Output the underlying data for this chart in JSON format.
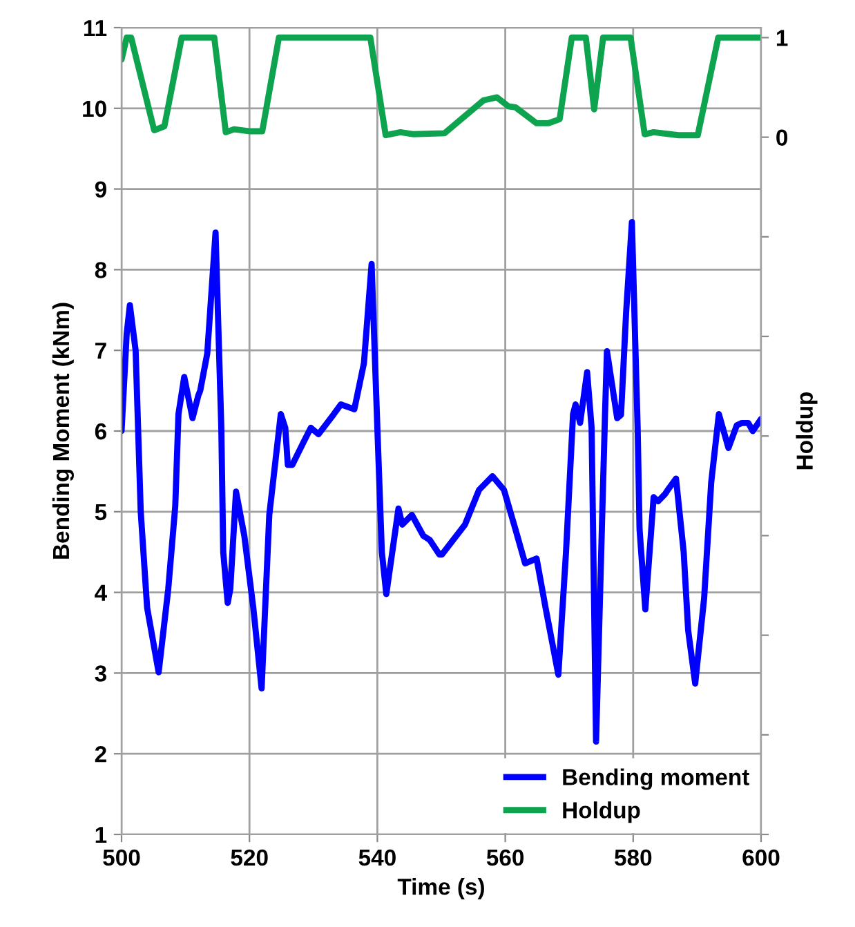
{
  "chart_data": {
    "type": "line",
    "xlabel": "Time (s)",
    "ylabel": "Bending Moment (kNm)",
    "y2label": "Holdup",
    "xlim": [
      500,
      600
    ],
    "xticks": [
      500,
      520,
      540,
      560,
      580,
      600
    ],
    "ylim": [
      1,
      11
    ],
    "yticks": [
      1,
      2,
      3,
      4,
      5,
      6,
      7,
      8,
      9,
      10,
      11
    ],
    "y2lim": [
      -7,
      1.1
    ],
    "y2ticks": [
      {
        "value": -7,
        "label": null
      },
      {
        "value": -6,
        "label": null
      },
      {
        "value": -5,
        "label": null
      },
      {
        "value": -4,
        "label": null
      },
      {
        "value": -3,
        "label": null
      },
      {
        "value": -2,
        "label": null
      },
      {
        "value": -1,
        "label": null
      },
      0,
      1
    ],
    "grid": true,
    "legend": "bottom right",
    "marker": "none",
    "line_style": "solid",
    "series": [
      {
        "name": "Bending moment",
        "color": "#0000ff",
        "axis": "y",
        "x": [
          500,
          500.8,
          501.3,
          502.2,
          503.0,
          504.0,
          505.8,
          507.3,
          508.4,
          508.9,
          509.8,
          511.1,
          512.0,
          512.3,
          513.4,
          514.7,
          515.6,
          515.9,
          516.6,
          517.0,
          517.9,
          519.2,
          520.6,
          521.9,
          523.1,
          524.9,
          525.6,
          526.0,
          526.7,
          528.5,
          529.6,
          530.8,
          533.2,
          534.3,
          536.4,
          537.9,
          539.1,
          540.0,
          540.7,
          541.4,
          543.3,
          543.9,
          545.4,
          547.2,
          548.2,
          549.7,
          550.1,
          553.7,
          555.9,
          558.0,
          559.8,
          561.6,
          563.1,
          564.9,
          566.3,
          568.3,
          569.5,
          570.6,
          571.0,
          571.7,
          572.8,
          573.5,
          574.2,
          575.2,
          575.6,
          575.9,
          577.5,
          578.1,
          578.9,
          579.8,
          580.7,
          581.0,
          581.9,
          583.2,
          583.9,
          585.0,
          585.4,
          586.7,
          587.9,
          588.6,
          589.7,
          591.1,
          592.2,
          593.4,
          594.9,
          596.2,
          597.0,
          598.0,
          598.7,
          600
        ],
        "values": [
          6.0,
          7.2,
          7.56,
          7.0,
          5.0,
          3.81,
          3.01,
          4.04,
          5.07,
          6.21,
          6.67,
          6.16,
          6.44,
          6.5,
          6.96,
          8.46,
          6.04,
          4.5,
          3.87,
          4.04,
          5.25,
          4.7,
          3.81,
          2.81,
          4.96,
          6.21,
          6.04,
          5.58,
          5.58,
          5.87,
          6.04,
          5.96,
          6.21,
          6.33,
          6.27,
          6.84,
          8.07,
          6.04,
          4.5,
          3.98,
          5.04,
          4.84,
          4.96,
          4.7,
          4.65,
          4.47,
          4.47,
          4.84,
          5.27,
          5.44,
          5.27,
          4.78,
          4.36,
          4.42,
          3.81,
          2.98,
          4.5,
          6.21,
          6.33,
          6.1,
          6.73,
          6.04,
          2.15,
          5.07,
          6.21,
          6.99,
          6.16,
          6.2,
          7.47,
          8.59,
          6.04,
          4.78,
          3.79,
          5.18,
          5.13,
          5.22,
          5.27,
          5.41,
          4.5,
          3.53,
          2.87,
          3.93,
          5.36,
          6.21,
          5.79,
          6.07,
          6.1,
          6.1,
          6.0,
          6.15
        ]
      },
      {
        "name": "Holdup",
        "color": "#0ea34f",
        "axis": "y2",
        "x": [
          500,
          500.8,
          501.5,
          505.1,
          506.7,
          509.4,
          514.5,
          516.3,
          517.6,
          519.9,
          522.0,
          524.6,
          538.9,
          541.3,
          543.6,
          545.7,
          550.5,
          556.6,
          558.7,
          560.5,
          561.6,
          564.9,
          566.7,
          568.5,
          570.4,
          572.6,
          573.9,
          575.3,
          579.6,
          581.8,
          583.2,
          587.1,
          590.1,
          593.3,
          600
        ],
        "values": [
          0.78,
          1,
          1,
          0.07,
          0.11,
          1,
          1,
          0.05,
          0.08,
          0.06,
          0.06,
          1,
          1,
          0.02,
          0.05,
          0.03,
          0.04,
          0.37,
          0.4,
          0.31,
          0.3,
          0.14,
          0.14,
          0.18,
          1,
          1,
          0.28,
          1,
          1,
          0.03,
          0.05,
          0.02,
          0.02,
          1,
          1
        ]
      }
    ]
  }
}
